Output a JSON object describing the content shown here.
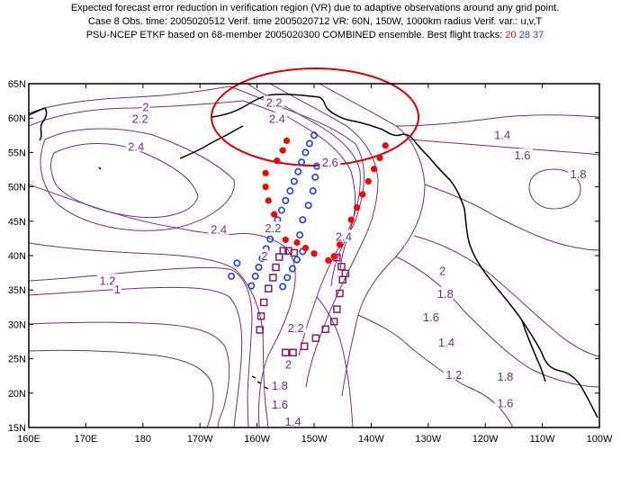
{
  "title": {
    "line1": "Expected forecast error reduction in verification region (VR) due to adaptive observations around any grid point.",
    "line2": "Case 8  Obs. time: 2005020512  Verif. time 2005020712  VR: 60N, 150W, 1000km radius  Verif. var.: u,v,T",
    "line3": "PSU-NCEP ETKF based on 68-member 2005020300 COMBINED ensemble.  Best flight tracks:",
    "track_red": "20",
    "track_blue": "28",
    "track_purple": "37"
  },
  "colors": {
    "contour": "#7a2a8a",
    "coast": "#000000",
    "vr_circle": "#e00000",
    "track_red": "#ff0000",
    "track_blue": "#1a3cff",
    "track_purple": "#8b1a6a"
  },
  "map": {
    "lon_min": 160,
    "lon_max": 260,
    "lat_min": 15,
    "lat_max": 65,
    "lon_labels": [
      "160E",
      "170E",
      "180",
      "170W",
      "160W",
      "150W",
      "140W",
      "130W",
      "120W",
      "110W",
      "100W"
    ],
    "lat_labels": [
      "15N",
      "20N",
      "25N",
      "30N",
      "35N",
      "40N",
      "45N",
      "50N",
      "55N",
      "60N",
      "65N"
    ]
  },
  "contour_labels": [
    {
      "text": "2",
      "lon": 180.5,
      "lat": 61.5
    },
    {
      "text": "2.2",
      "lon": 179.5,
      "lat": 59.8
    },
    {
      "text": "2.4",
      "lon": 178.8,
      "lat": 55.8
    },
    {
      "text": "2.2",
      "lon": 203,
      "lat": 62.2
    },
    {
      "text": "2.4",
      "lon": 203.5,
      "lat": 59.8
    },
    {
      "text": "2.6",
      "lon": 212.8,
      "lat": 53.5
    },
    {
      "text": "1.4",
      "lon": 243,
      "lat": 57.5
    },
    {
      "text": "1.6",
      "lon": 246.5,
      "lat": 54.5
    },
    {
      "text": "1.8",
      "lon": 256.3,
      "lat": 51.8
    },
    {
      "text": "2.4",
      "lon": 193.3,
      "lat": 43.7
    },
    {
      "text": "2.2",
      "lon": 202.8,
      "lat": 43.9
    },
    {
      "text": "2.4",
      "lon": 215.2,
      "lat": 42.7
    },
    {
      "text": "2",
      "lon": 201.3,
      "lat": 39.9
    },
    {
      "text": "2",
      "lon": 232.5,
      "lat": 37.7
    },
    {
      "text": "1.2",
      "lon": 173.8,
      "lat": 36.3
    },
    {
      "text": "1",
      "lon": 175.5,
      "lat": 35.0
    },
    {
      "text": "1.8",
      "lon": 233,
      "lat": 34.4
    },
    {
      "text": "1.6",
      "lon": 230.5,
      "lat": 31.0
    },
    {
      "text": "2.2",
      "lon": 206.8,
      "lat": 29.4
    },
    {
      "text": "1.4",
      "lon": 233.2,
      "lat": 27.3
    },
    {
      "text": "2",
      "lon": 205.5,
      "lat": 24.1
    },
    {
      "text": "1.2",
      "lon": 234.5,
      "lat": 22.6
    },
    {
      "text": "1.8",
      "lon": 243.5,
      "lat": 22.3
    },
    {
      "text": "1.8",
      "lon": 204,
      "lat": 21.0
    },
    {
      "text": "1.6",
      "lon": 204,
      "lat": 18.3
    },
    {
      "text": "1.6",
      "lon": 243.5,
      "lat": 18.5
    },
    {
      "text": "1.4",
      "lon": 206.3,
      "lat": 15.8
    }
  ],
  "track_red_points": [
    [
      222.5,
      56
    ],
    [
      221.5,
      54.2
    ],
    [
      220.5,
      52.6
    ],
    [
      219.5,
      50.8
    ],
    [
      218.5,
      48.9
    ],
    [
      217.5,
      47.0
    ],
    [
      216.5,
      45.2
    ],
    [
      215.5,
      43.3
    ],
    [
      214.5,
      41.6
    ],
    [
      213.5,
      39.9
    ],
    [
      212.5,
      39.3
    ],
    [
      210.0,
      40.3
    ],
    [
      208.5,
      41.1
    ],
    [
      207.0,
      41.9
    ],
    [
      205.0,
      42.3
    ],
    [
      204.0,
      44.0
    ],
    [
      203.0,
      46.0
    ],
    [
      202.0,
      48.0
    ],
    [
      201.5,
      50.0
    ],
    [
      201.5,
      52.0
    ],
    [
      203.5,
      53.8
    ],
    [
      204.5,
      55.3
    ],
    [
      205.2,
      56.7
    ]
  ],
  "track_blue_points": [
    [
      210.0,
      57.5
    ],
    [
      209.2,
      56.3
    ],
    [
      208.5,
      55.0
    ],
    [
      207.8,
      53.6
    ],
    [
      207.2,
      52.2
    ],
    [
      206.5,
      50.8
    ],
    [
      205.8,
      49.4
    ],
    [
      205.0,
      48.0
    ],
    [
      204.3,
      46.6
    ],
    [
      203.6,
      45.2
    ],
    [
      203.0,
      43.8
    ],
    [
      202.3,
      42.4
    ],
    [
      201.6,
      41.0
    ],
    [
      200.9,
      39.6
    ],
    [
      200.3,
      38.3
    ],
    [
      199.7,
      37.0
    ],
    [
      199.0,
      35.6
    ],
    [
      204.5,
      35.5
    ],
    [
      205.3,
      36.8
    ],
    [
      206.2,
      38.1
    ],
    [
      207.0,
      39.4
    ],
    [
      208.0,
      40.6
    ],
    [
      207.5,
      43.0
    ],
    [
      208.0,
      45.2
    ],
    [
      209.0,
      47.3
    ],
    [
      209.8,
      49.4
    ],
    [
      210.2,
      51.4
    ],
    [
      210.5,
      53.0
    ],
    [
      196.5,
      38.9
    ],
    [
      195.5,
      37.0
    ]
  ],
  "track_purple_points": [
    [
      213.5,
      30.4
    ],
    [
      212.0,
      29.3
    ],
    [
      210.3,
      28.0
    ],
    [
      208.3,
      26.8
    ],
    [
      206.3,
      25.9
    ],
    [
      205.0,
      25.9
    ],
    [
      200.5,
      29.2
    ],
    [
      200.7,
      31.2
    ],
    [
      201.2,
      33.2
    ],
    [
      202.0,
      35.2
    ],
    [
      202.8,
      36.8
    ],
    [
      203.3,
      38.3
    ],
    [
      203.9,
      39.8
    ],
    [
      204.6,
      40.7
    ],
    [
      205.5,
      40.7
    ],
    [
      206.5,
      40.4
    ],
    [
      214.0,
      32.2
    ],
    [
      214.5,
      34.5
    ],
    [
      215.0,
      36.5
    ],
    [
      215.5,
      37.4
    ],
    [
      214.8,
      38.4
    ],
    [
      214.0,
      39.7
    ]
  ]
}
